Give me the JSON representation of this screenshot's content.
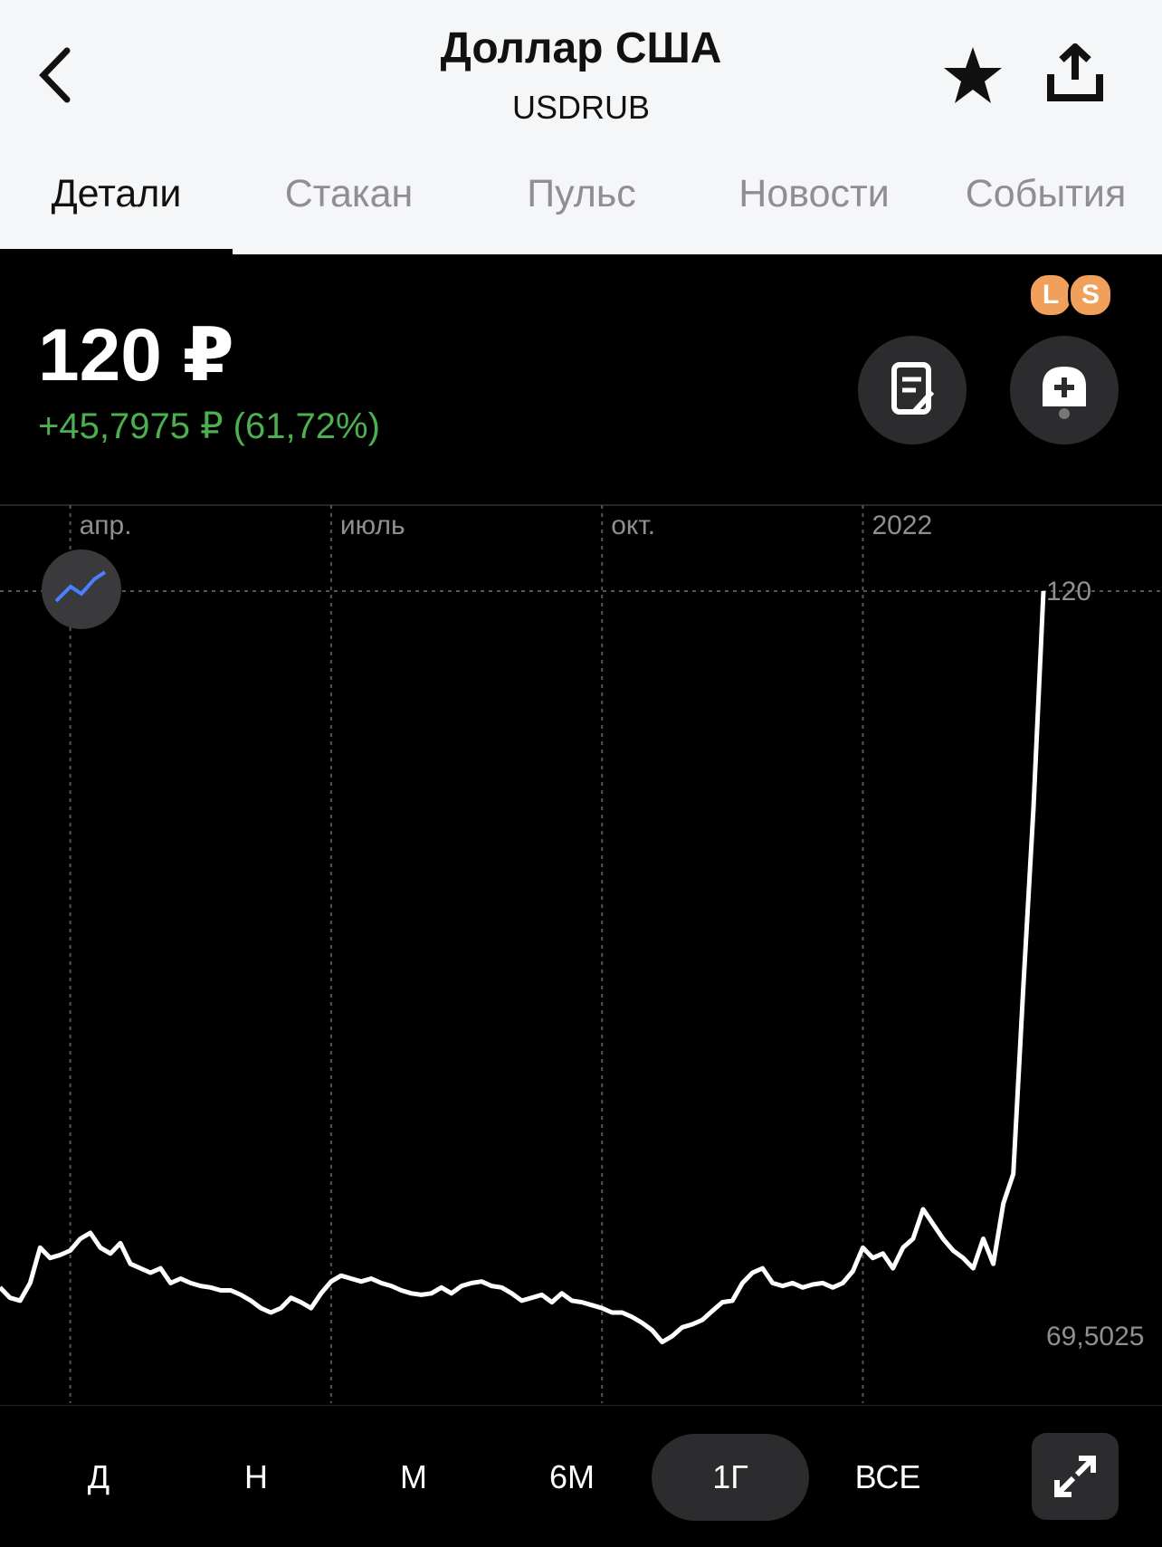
{
  "header": {
    "title": "Доллар США",
    "subtitle": "USDRUB"
  },
  "tabs": [
    "Детали",
    "Стакан",
    "Пульс",
    "Новости",
    "События"
  ],
  "badges": [
    "L",
    "S"
  ],
  "price": "120 ₽",
  "change": "+45,7975 ₽ (61,72%)",
  "periods": [
    "Д",
    "Н",
    "М",
    "6М",
    "1Г",
    "ВСЕ"
  ],
  "chart_data": {
    "type": "line",
    "color": "#ffffff",
    "grid": true,
    "categories": [
      null,
      null,
      null,
      null,
      null,
      null,
      null,
      "апр.",
      null,
      null,
      null,
      null,
      null,
      null,
      null,
      null,
      null,
      null,
      null,
      null,
      null,
      null,
      null,
      null,
      null,
      null,
      null,
      null,
      null,
      null,
      null,
      null,
      null,
      "июль",
      null,
      null,
      null,
      null,
      null,
      null,
      null,
      null,
      null,
      null,
      null,
      null,
      null,
      null,
      null,
      null,
      null,
      null,
      null,
      null,
      null,
      null,
      null,
      null,
      null,
      null,
      "окт.",
      null,
      null,
      null,
      null,
      null,
      null,
      null,
      null,
      null,
      null,
      null,
      null,
      null,
      null,
      null,
      null,
      null,
      null,
      null,
      null,
      null,
      null,
      null,
      null,
      null,
      "2022",
      null,
      null,
      null,
      null,
      null,
      null,
      null,
      null,
      null,
      null,
      null,
      null,
      null,
      null,
      null,
      null,
      null,
      null
    ],
    "values": [
      72.8,
      72.1,
      71.9,
      73.1,
      75.5,
      74.8,
      75.0,
      75.3,
      76.1,
      76.5,
      75.5,
      75.1,
      75.8,
      74.4,
      74.1,
      73.8,
      74.1,
      73.1,
      73.4,
      73.1,
      72.9,
      72.8,
      72.6,
      72.6,
      72.3,
      71.9,
      71.4,
      71.1,
      71.4,
      72.1,
      71.8,
      71.4,
      72.4,
      73.2,
      73.6,
      73.4,
      73.2,
      73.4,
      73.1,
      72.9,
      72.6,
      72.4,
      72.3,
      72.4,
      72.8,
      72.4,
      72.9,
      73.1,
      73.2,
      72.9,
      72.8,
      72.4,
      71.9,
      72.1,
      72.3,
      71.8,
      72.4,
      71.9,
      71.8,
      71.6,
      71.4,
      71.1,
      71.1,
      70.8,
      70.4,
      69.9,
      69.1,
      69.5,
      70.1,
      70.3,
      70.6,
      71.2,
      71.8,
      71.9,
      73.1,
      73.8,
      74.1,
      73.1,
      72.9,
      73.1,
      72.8,
      73.0,
      73.1,
      72.8,
      73.1,
      73.9,
      75.5,
      74.8,
      75.1,
      74.1,
      75.5,
      76.1,
      78.1,
      77.1,
      76.1,
      75.3,
      74.8,
      74.1,
      76.1,
      74.4,
      78.5,
      80.5,
      93.2,
      105.2,
      120
    ],
    "ylim": [
      69.5025,
      120
    ],
    "yticks": [
      {
        "value": 69.5025,
        "label": "69,5025"
      },
      120
    ]
  }
}
